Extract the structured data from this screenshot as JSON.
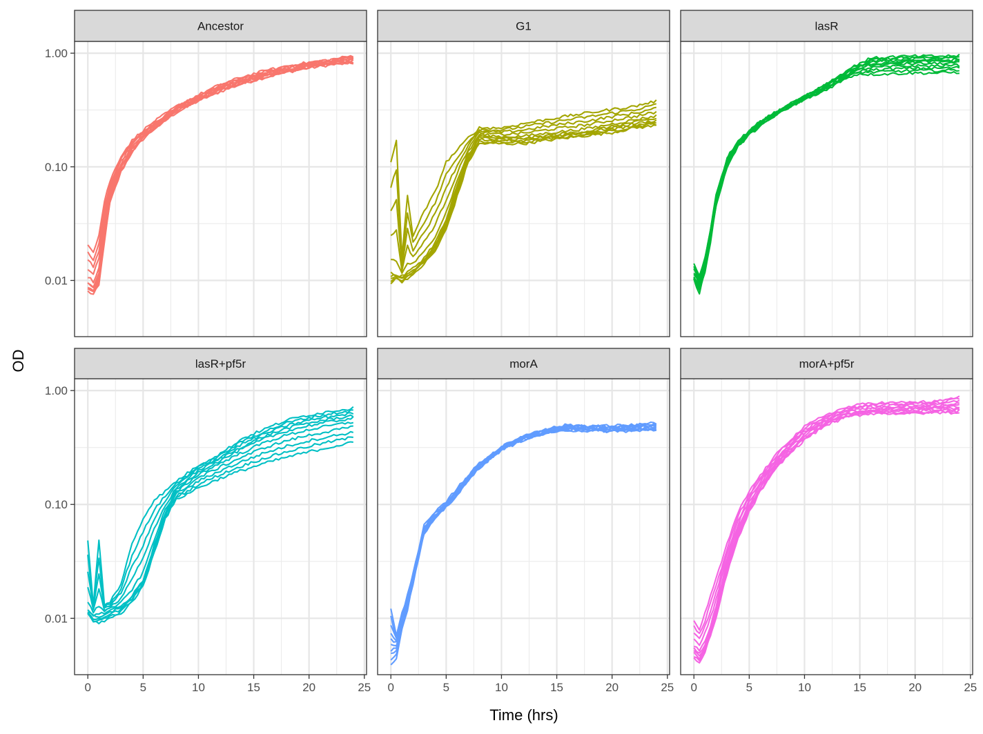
{
  "chart_data": {
    "type": "line",
    "layout": "faceted 2x3 grid (facet_wrap)",
    "xlabel": "Time (hrs)",
    "ylabel": "OD",
    "x_scale": "linear",
    "y_scale": "log10",
    "xlim": [
      -1.2,
      25.2
    ],
    "ylim": [
      0.0032,
      1.27
    ],
    "x_ticks": [
      0,
      5,
      10,
      15,
      20,
      25
    ],
    "x_tick_labels": [
      "0",
      "5",
      "10",
      "15",
      "20",
      "25"
    ],
    "y_ticks": [
      1.0,
      0.1,
      0.01
    ],
    "y_tick_labels": [
      "1.00",
      "0.10",
      "0.01"
    ],
    "grid": true,
    "legend": "none",
    "replicates_per_panel": 10,
    "panels": [
      {
        "name": "Ancestor",
        "color": "#F8766D",
        "description": "Lag to ~1.5h, rapid rise to ~0.1 by 3h, then steady increase to ~0.85-0.95 at 24h",
        "x": [
          0,
          0.5,
          1,
          1.5,
          2,
          3,
          4,
          5,
          6,
          8,
          10,
          12,
          14,
          16,
          18,
          20,
          22,
          24
        ],
        "series": [
          {
            "name": "median",
            "values": [
              0.01,
              0.009,
              0.012,
              0.03,
              0.06,
              0.105,
              0.15,
              0.19,
              0.23,
              0.32,
              0.4,
              0.49,
              0.57,
              0.65,
              0.72,
              0.78,
              0.83,
              0.88
            ]
          },
          {
            "name": "upper",
            "values": [
              0.021,
              0.018,
              0.025,
              0.05,
              0.075,
              0.125,
              0.17,
              0.21,
              0.25,
              0.34,
              0.43,
              0.53,
              0.62,
              0.7,
              0.77,
              0.83,
              0.88,
              0.95
            ]
          },
          {
            "name": "lower",
            "values": [
              0.008,
              0.0075,
              0.009,
              0.022,
              0.048,
              0.09,
              0.135,
              0.175,
              0.215,
              0.3,
              0.38,
              0.46,
              0.54,
              0.61,
              0.68,
              0.74,
              0.79,
              0.82
            ]
          }
        ]
      },
      {
        "name": "G1",
        "color": "#A3A500",
        "description": "Noisy start ~0.01-0.17, lag until ~3h, rise to ~0.2 at 8h, slow increase to ~0.25-0.38 at 24h",
        "x": [
          0,
          0.5,
          1,
          1.5,
          2,
          3,
          4,
          5,
          6,
          7,
          8,
          10,
          12,
          14,
          16,
          18,
          20,
          22,
          24
        ],
        "series": [
          {
            "name": "median",
            "values": [
              0.012,
              0.011,
              0.011,
              0.012,
              0.013,
              0.016,
              0.022,
              0.035,
              0.07,
              0.13,
              0.19,
              0.18,
              0.18,
              0.19,
              0.2,
              0.21,
              0.23,
              0.25,
              0.27
            ]
          },
          {
            "name": "upper",
            "values": [
              0.11,
              0.17,
              0.016,
              0.055,
              0.025,
              0.04,
              0.06,
              0.11,
              0.14,
              0.18,
              0.22,
              0.22,
              0.24,
              0.26,
              0.28,
              0.3,
              0.32,
              0.34,
              0.38
            ]
          },
          {
            "name": "lower",
            "values": [
              0.0095,
              0.0105,
              0.0098,
              0.0105,
              0.011,
              0.014,
              0.018,
              0.028,
              0.055,
              0.11,
              0.16,
              0.16,
              0.16,
              0.17,
              0.18,
              0.19,
              0.2,
              0.22,
              0.23
            ]
          }
        ]
      },
      {
        "name": "lasR",
        "color": "#00BA38",
        "description": "Dip near 0.008 at ~0.5h, fast rise to 0.1 by ~2.5h, plateau ~0.65-0.95 after 15h",
        "x": [
          0,
          0.5,
          1,
          1.5,
          2,
          3,
          4,
          5,
          6,
          8,
          10,
          12,
          14,
          15,
          16,
          18,
          20,
          22,
          24
        ],
        "series": [
          {
            "name": "median",
            "values": [
              0.011,
              0.009,
              0.014,
              0.025,
              0.05,
              0.11,
              0.16,
              0.2,
              0.24,
              0.32,
              0.4,
              0.5,
              0.65,
              0.75,
              0.8,
              0.82,
              0.83,
              0.83,
              0.84
            ]
          },
          {
            "name": "upper",
            "values": [
              0.014,
              0.011,
              0.016,
              0.028,
              0.056,
              0.12,
              0.17,
              0.21,
              0.25,
              0.33,
              0.42,
              0.54,
              0.72,
              0.82,
              0.9,
              0.93,
              0.94,
              0.94,
              0.95
            ]
          },
          {
            "name": "lower",
            "values": [
              0.01,
              0.0078,
              0.012,
              0.022,
              0.045,
              0.1,
              0.15,
              0.19,
              0.23,
              0.31,
              0.39,
              0.48,
              0.62,
              0.66,
              0.65,
              0.66,
              0.67,
              0.67,
              0.68
            ]
          }
        ]
      },
      {
        "name": "lasR+pf5r",
        "color": "#00BFC4",
        "description": "Start ~0.01 with spikes to ~0.05, lag to ~3h, rise to ~0.15 at 8h, continuing rise to ~0.35-0.7 at 24h",
        "x": [
          0,
          0.5,
          1,
          1.5,
          2,
          3,
          4,
          5,
          6,
          7,
          8,
          10,
          12,
          14,
          16,
          18,
          20,
          22,
          24
        ],
        "series": [
          {
            "name": "median",
            "values": [
              0.012,
              0.011,
              0.011,
              0.0115,
              0.012,
              0.013,
              0.016,
              0.022,
              0.045,
              0.085,
              0.13,
              0.19,
              0.24,
              0.3,
              0.37,
              0.43,
              0.48,
              0.52,
              0.56
            ]
          },
          {
            "name": "upper",
            "values": [
              0.048,
              0.013,
              0.048,
              0.013,
              0.014,
              0.02,
              0.045,
              0.075,
              0.11,
              0.13,
              0.16,
              0.22,
              0.28,
              0.38,
              0.46,
              0.55,
              0.61,
              0.66,
              0.7
            ]
          },
          {
            "name": "lower",
            "values": [
              0.011,
              0.0093,
              0.0092,
              0.0095,
              0.01,
              0.011,
              0.014,
              0.019,
              0.038,
              0.075,
              0.11,
              0.14,
              0.17,
              0.2,
              0.23,
              0.26,
              0.29,
              0.32,
              0.35
            ]
          }
        ]
      },
      {
        "name": "morA",
        "color": "#619CFF",
        "description": "Start ~0.004-0.012, rapid rise to ~0.075 at 3h, smooth approach to plateau ~0.45-0.52 after 15h",
        "x": [
          0,
          0.5,
          1,
          1.5,
          2,
          3,
          4,
          5,
          6,
          7,
          8,
          10,
          12,
          14,
          16,
          18,
          20,
          22,
          24
        ],
        "series": [
          {
            "name": "median",
            "values": [
              0.006,
              0.006,
              0.009,
              0.014,
              0.022,
              0.06,
              0.08,
              0.1,
              0.13,
              0.17,
              0.22,
              0.31,
              0.39,
              0.44,
              0.47,
              0.46,
              0.46,
              0.47,
              0.48
            ]
          },
          {
            "name": "upper",
            "values": [
              0.012,
              0.007,
              0.011,
              0.016,
              0.025,
              0.065,
              0.085,
              0.105,
              0.14,
              0.18,
              0.23,
              0.32,
              0.4,
              0.46,
              0.5,
              0.49,
              0.49,
              0.5,
              0.52
            ]
          },
          {
            "name": "lower",
            "values": [
              0.004,
              0.0045,
              0.008,
              0.012,
              0.02,
              0.055,
              0.075,
              0.095,
              0.12,
              0.16,
              0.21,
              0.3,
              0.37,
              0.42,
              0.45,
              0.44,
              0.44,
              0.44,
              0.45
            ]
          }
        ]
      },
      {
        "name": "morA+pf5r",
        "color": "#F564E3",
        "description": "Start ~0.004-0.009, rise through 0.1 at ~5h, plateau ~0.65-0.9 after 15h",
        "x": [
          0,
          0.5,
          1,
          1.5,
          2,
          3,
          4,
          5,
          6,
          7,
          8,
          10,
          12,
          14,
          16,
          18,
          20,
          22,
          24
        ],
        "series": [
          {
            "name": "median",
            "values": [
              0.0055,
              0.005,
              0.006,
              0.008,
              0.012,
              0.03,
              0.06,
              0.1,
              0.15,
              0.2,
              0.27,
              0.42,
              0.55,
              0.64,
              0.68,
              0.69,
              0.7,
              0.71,
              0.74
            ]
          },
          {
            "name": "upper",
            "values": [
              0.0095,
              0.008,
              0.011,
              0.016,
              0.022,
              0.045,
              0.085,
              0.13,
              0.18,
              0.24,
              0.32,
              0.48,
              0.62,
              0.72,
              0.78,
              0.78,
              0.79,
              0.8,
              0.88
            ]
          },
          {
            "name": "lower",
            "values": [
              0.0045,
              0.004,
              0.005,
              0.007,
              0.01,
              0.025,
              0.05,
              0.085,
              0.13,
              0.18,
              0.24,
              0.37,
              0.5,
              0.59,
              0.63,
              0.63,
              0.63,
              0.64,
              0.64
            ]
          }
        ]
      }
    ]
  }
}
